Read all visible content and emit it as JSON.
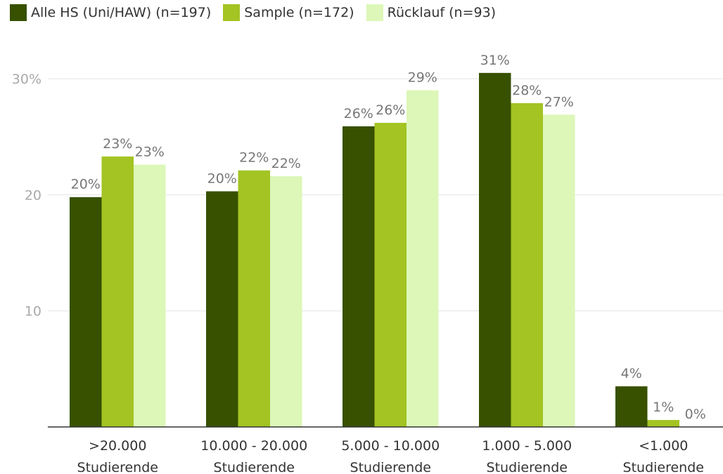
{
  "chart_data": {
    "type": "bar",
    "categories": [
      [
        ">20.000",
        "Studierende"
      ],
      [
        "10.000 - 20.000",
        "Studierende"
      ],
      [
        "5.000 - 10.000",
        "Studierende"
      ],
      [
        "1.000 - 5.000",
        "Studierende"
      ],
      [
        "<1.000",
        "Studierende"
      ]
    ],
    "series": [
      {
        "name": "Alle HS (Uni/HAW) (n=197)",
        "color": "#375100",
        "values": [
          19.8,
          20.3,
          25.9,
          30.5,
          3.5
        ],
        "labels": [
          "20%",
          "20%",
          "26%",
          "31%",
          "4%"
        ]
      },
      {
        "name": "Sample (n=172)",
        "color": "#a3c423",
        "values": [
          23.3,
          22.1,
          26.2,
          27.9,
          0.6
        ],
        "labels": [
          "23%",
          "22%",
          "26%",
          "28%",
          "1%"
        ]
      },
      {
        "name": "Rücklauf (n=93)",
        "color": "#dcf7b8",
        "values": [
          22.6,
          21.6,
          29.0,
          26.9,
          0.0
        ],
        "labels": [
          "23%",
          "22%",
          "29%",
          "27%",
          "0%"
        ]
      }
    ],
    "yticks": [
      {
        "value": 10,
        "label": "10"
      },
      {
        "value": 20,
        "label": "20"
      },
      {
        "value": 30,
        "label": "30%"
      }
    ],
    "ylim": [
      0,
      30
    ],
    "grid": true,
    "legend": "top-left",
    "title": "",
    "xlabel": "",
    "ylabel": ""
  }
}
